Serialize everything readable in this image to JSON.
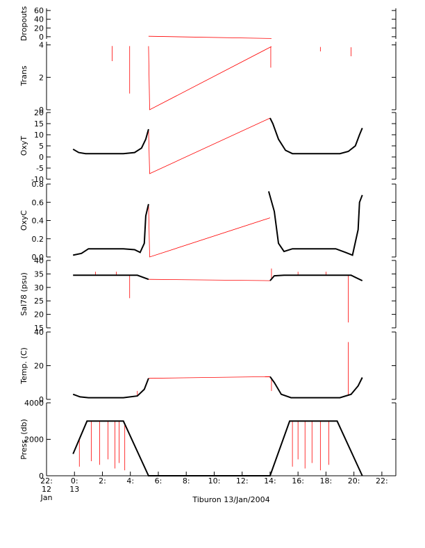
{
  "chart_data": {
    "type": "line",
    "caption": "Tiburon 13/Jan/2004",
    "x_axis": {
      "range_hours": [
        -2,
        23
      ],
      "ticks": [
        {
          "value": -2,
          "label": "22:",
          "sublabel": "12",
          "sublabel2": "Jan"
        },
        {
          "value": 0,
          "label": "0:",
          "sublabel": "13",
          "sublabel2": ""
        },
        {
          "value": 2,
          "label": "2:",
          "sublabel": "",
          "sublabel2": ""
        },
        {
          "value": 4,
          "label": "4:",
          "sublabel": "",
          "sublabel2": ""
        },
        {
          "value": 6,
          "label": "6:",
          "sublabel": "",
          "sublabel2": ""
        },
        {
          "value": 8,
          "label": "8:",
          "sublabel": "",
          "sublabel2": ""
        },
        {
          "value": 10,
          "label": "10:",
          "sublabel": "",
          "sublabel2": ""
        },
        {
          "value": 12,
          "label": "12:",
          "sublabel": "",
          "sublabel2": ""
        },
        {
          "value": 14,
          "label": "14:",
          "sublabel": "",
          "sublabel2": ""
        },
        {
          "value": 16,
          "label": "16:",
          "sublabel": "",
          "sublabel2": ""
        },
        {
          "value": 18,
          "label": "18:",
          "sublabel": "",
          "sublabel2": ""
        },
        {
          "value": 20,
          "label": "20:",
          "sublabel": "",
          "sublabel2": ""
        },
        {
          "value": 22,
          "label": "22:",
          "sublabel": "",
          "sublabel2": ""
        }
      ]
    },
    "panels": [
      {
        "id": "dropouts",
        "ylabel": "Dropouts",
        "ylim": [
          -5,
          65
        ],
        "yticks": [
          0,
          20,
          40,
          60
        ],
        "ytick_labels": [
          "0",
          "20",
          "40",
          "60"
        ],
        "observed": [
          [
            -0.1,
            1
          ],
          [
            5.3,
            1
          ],
          [
            14.1,
            1
          ],
          [
            20.6,
            1
          ]
        ],
        "interp": [
          [
            5.3,
            1
          ],
          [
            14.1,
            -4
          ]
        ],
        "spikes": []
      },
      {
        "id": "trans",
        "ylabel": "Trans",
        "ylim": [
          0,
          4.2
        ],
        "yticks": [
          0,
          2,
          4
        ],
        "ytick_labels": [
          "0",
          "2",
          "4"
        ],
        "observed": [
          [
            -0.1,
            3.95
          ],
          [
            5.3,
            3.92
          ],
          [
            14.1,
            3.9
          ],
          [
            20.6,
            3.85
          ]
        ],
        "interp": [
          [
            5.3,
            3.92
          ],
          [
            5.38,
            0
          ],
          [
            14.1,
            3.9
          ]
        ],
        "spikes": [
          [
            2.7,
            3.0
          ],
          [
            3.95,
            1.0
          ],
          [
            14.05,
            2.6
          ],
          [
            17.6,
            3.6
          ],
          [
            19.8,
            3.3
          ]
        ]
      },
      {
        "id": "oxyt",
        "ylabel": "OxyT",
        "ylim": [
          -10,
          20
        ],
        "yticks": [
          -10,
          -5,
          0,
          5,
          10,
          15,
          20
        ],
        "ytick_labels": [
          "-10",
          "-5",
          "0",
          "5",
          "10",
          "15",
          "20"
        ],
        "observed": [
          [
            -0.1,
            3.5
          ],
          [
            0.3,
            2
          ],
          [
            0.8,
            1.5
          ],
          [
            3.5,
            1.5
          ],
          [
            4.3,
            2
          ],
          [
            4.8,
            4
          ],
          [
            5.1,
            8
          ],
          [
            5.3,
            12.5
          ],
          [
            14.0,
            17.5
          ],
          [
            14.2,
            15
          ],
          [
            14.6,
            8
          ],
          [
            15.1,
            3
          ],
          [
            15.6,
            1.5
          ],
          [
            19.0,
            1.5
          ],
          [
            19.6,
            2.5
          ],
          [
            20.1,
            5
          ],
          [
            20.4,
            10
          ],
          [
            20.6,
            13
          ]
        ],
        "interp": [
          [
            5.3,
            12.5
          ],
          [
            5.38,
            -7.5
          ],
          [
            14.0,
            17.5
          ]
        ],
        "spikes": []
      },
      {
        "id": "oxyc",
        "ylabel": "OxyC",
        "ylim": [
          0,
          0.8
        ],
        "yticks": [
          0,
          0.2,
          0.4,
          0.6,
          0.8
        ],
        "ytick_labels": [
          "0.0",
          "0.2",
          "0.4",
          "0.6",
          "0.8"
        ],
        "observed": [
          [
            -0.1,
            0.02
          ],
          [
            0.5,
            0.04
          ],
          [
            1.0,
            0.09
          ],
          [
            3.5,
            0.09
          ],
          [
            4.3,
            0.08
          ],
          [
            4.7,
            0.05
          ],
          [
            5.0,
            0.15
          ],
          [
            5.1,
            0.45
          ],
          [
            5.3,
            0.58
          ],
          [
            13.9,
            0.72
          ],
          [
            14.3,
            0.5
          ],
          [
            14.6,
            0.15
          ],
          [
            15.0,
            0.06
          ],
          [
            15.6,
            0.09
          ],
          [
            18.7,
            0.09
          ],
          [
            19.4,
            0.05
          ],
          [
            19.9,
            0.02
          ],
          [
            20.3,
            0.3
          ],
          [
            20.4,
            0.6
          ],
          [
            20.6,
            0.68
          ]
        ],
        "interp": [
          [
            5.3,
            0.58
          ],
          [
            5.38,
            0.0
          ],
          [
            14.0,
            0.43
          ]
        ],
        "spikes": []
      },
      {
        "id": "sal78",
        "ylabel": "Sal78 (psu)",
        "ylim": [
          15,
          40
        ],
        "yticks": [
          15,
          20,
          25,
          30,
          35,
          40
        ],
        "ytick_labels": [
          "15",
          "20",
          "25",
          "30",
          "35",
          "40"
        ],
        "observed": [
          [
            -0.1,
            34.5
          ],
          [
            4.5,
            34.5
          ],
          [
            5.3,
            33
          ],
          [
            14.0,
            32.5
          ],
          [
            14.3,
            34.3
          ],
          [
            15.0,
            34.5
          ],
          [
            19.8,
            34.5
          ],
          [
            20.6,
            32.5
          ]
        ],
        "interp": [
          [
            5.3,
            33
          ],
          [
            14.0,
            32.5
          ]
        ],
        "spikes": [
          [
            3.95,
            26
          ],
          [
            14.1,
            37
          ],
          [
            19.6,
            17
          ],
          [
            1.5,
            35.8
          ],
          [
            3.0,
            35.8
          ],
          [
            16.0,
            35.8
          ],
          [
            18.0,
            35.8
          ]
        ]
      },
      {
        "id": "temp",
        "ylabel": "Temp. (C)",
        "ylim": [
          0,
          40
        ],
        "yticks": [
          0,
          20,
          40
        ],
        "ytick_labels": [
          "0",
          "20",
          "40"
        ],
        "observed": [
          [
            -0.1,
            3
          ],
          [
            0.4,
            1.5
          ],
          [
            1.0,
            1
          ],
          [
            3.5,
            1
          ],
          [
            4.5,
            2
          ],
          [
            5.0,
            6
          ],
          [
            5.3,
            12.5
          ],
          [
            14.0,
            13.5
          ],
          [
            14.3,
            10
          ],
          [
            14.8,
            3
          ],
          [
            15.5,
            1
          ],
          [
            19.0,
            1
          ],
          [
            19.8,
            3
          ],
          [
            20.3,
            8
          ],
          [
            20.6,
            13
          ]
        ],
        "interp": [
          [
            5.3,
            12.5
          ],
          [
            14.0,
            13.5
          ]
        ],
        "spikes": [
          [
            4.5,
            5
          ],
          [
            14.1,
            5
          ],
          [
            19.6,
            34
          ]
        ]
      },
      {
        "id": "press",
        "ylabel": "Press. (db)",
        "ylim": [
          0,
          4000
        ],
        "yticks": [
          0,
          2000,
          4000
        ],
        "ytick_labels": [
          "0",
          "2000",
          "4000"
        ],
        "observed": [
          [
            -0.1,
            1200
          ],
          [
            0.9,
            3000
          ],
          [
            3.5,
            3000
          ],
          [
            5.3,
            0
          ],
          [
            14.0,
            0
          ],
          [
            15.4,
            3000
          ],
          [
            18.8,
            3000
          ],
          [
            20.6,
            0
          ]
        ],
        "interp": [],
        "spikes": [
          [
            0.35,
            500
          ],
          [
            1.2,
            800
          ],
          [
            1.8,
            600
          ],
          [
            2.4,
            900
          ],
          [
            2.9,
            400
          ],
          [
            3.2,
            700
          ],
          [
            3.6,
            300
          ],
          [
            15.6,
            500
          ],
          [
            16.0,
            900
          ],
          [
            16.5,
            400
          ],
          [
            17.0,
            700
          ],
          [
            17.6,
            300
          ],
          [
            18.2,
            600
          ]
        ]
      }
    ]
  }
}
